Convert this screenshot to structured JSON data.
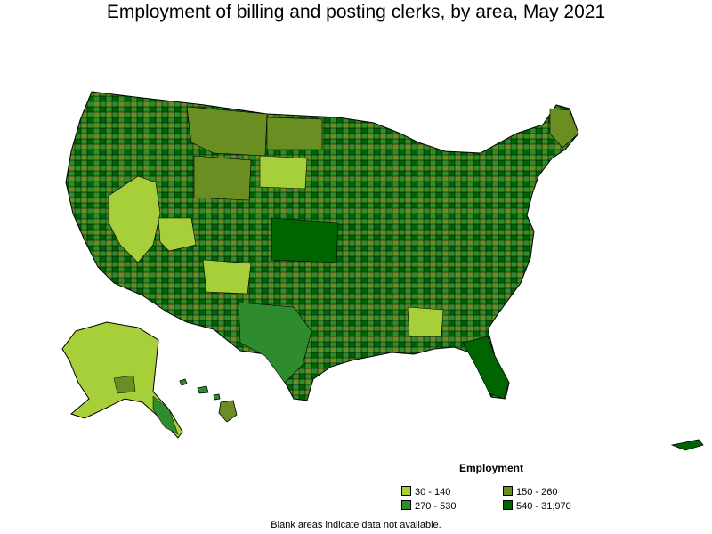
{
  "title": "Employment of billing and posting clerks, by area, May 2021",
  "legend": {
    "title": "Employment",
    "items": [
      {
        "label": "30 - 140",
        "color": "#a6cf3a"
      },
      {
        "label": "150 - 260",
        "color": "#6b8e23"
      },
      {
        "label": "270 - 530",
        "color": "#2e8b2e"
      },
      {
        "label": "540 - 31,970",
        "color": "#006400"
      }
    ]
  },
  "footnote": "Blank areas indicate data not available.",
  "colors": {
    "border": "#000000",
    "background": "#ffffff"
  }
}
